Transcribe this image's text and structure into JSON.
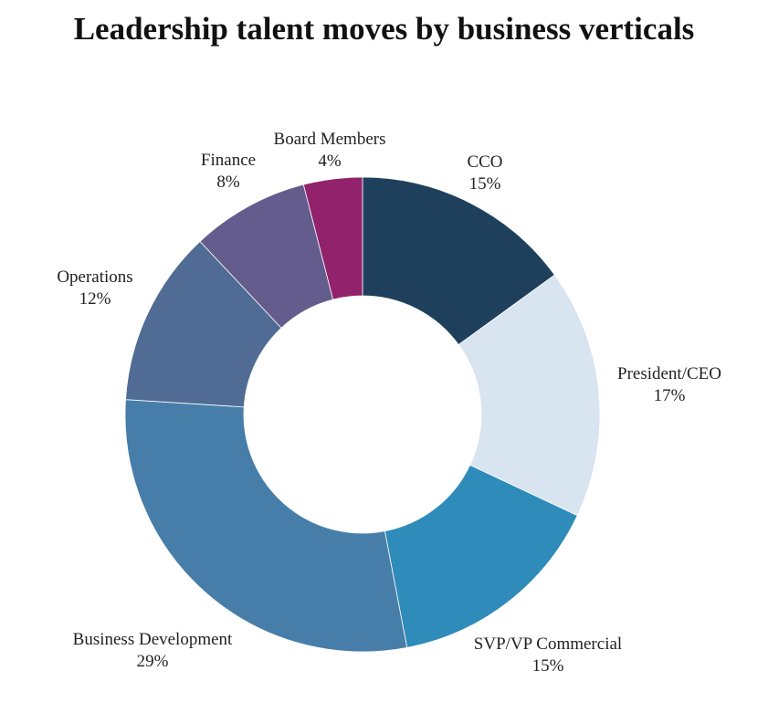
{
  "chart_data": {
    "type": "pie",
    "variant": "donut",
    "title": "Leadership talent moves by business verticals",
    "slices": [
      {
        "label": "CCO",
        "value": 15,
        "value_label": "15%",
        "color": "#1f405d"
      },
      {
        "label": "President/CEO",
        "value": 17,
        "value_label": "17%",
        "color": "#d8e4f0"
      },
      {
        "label": "SVP/VP Commercial",
        "value": 15,
        "value_label": "15%",
        "color": "#2e8bba"
      },
      {
        "label": "Business Development",
        "value": 29,
        "value_label": "29%",
        "color": "#477ea9"
      },
      {
        "label": "Operations",
        "value": 12,
        "value_label": "12%",
        "color": "#506c94"
      },
      {
        "label": "Finance",
        "value": 8,
        "value_label": "8%",
        "color": "#655c8e"
      },
      {
        "label": "Board Members",
        "value": 4,
        "value_label": "4%",
        "color": "#92226c"
      }
    ],
    "start": "top",
    "direction": "clockwise",
    "legend": "none"
  }
}
